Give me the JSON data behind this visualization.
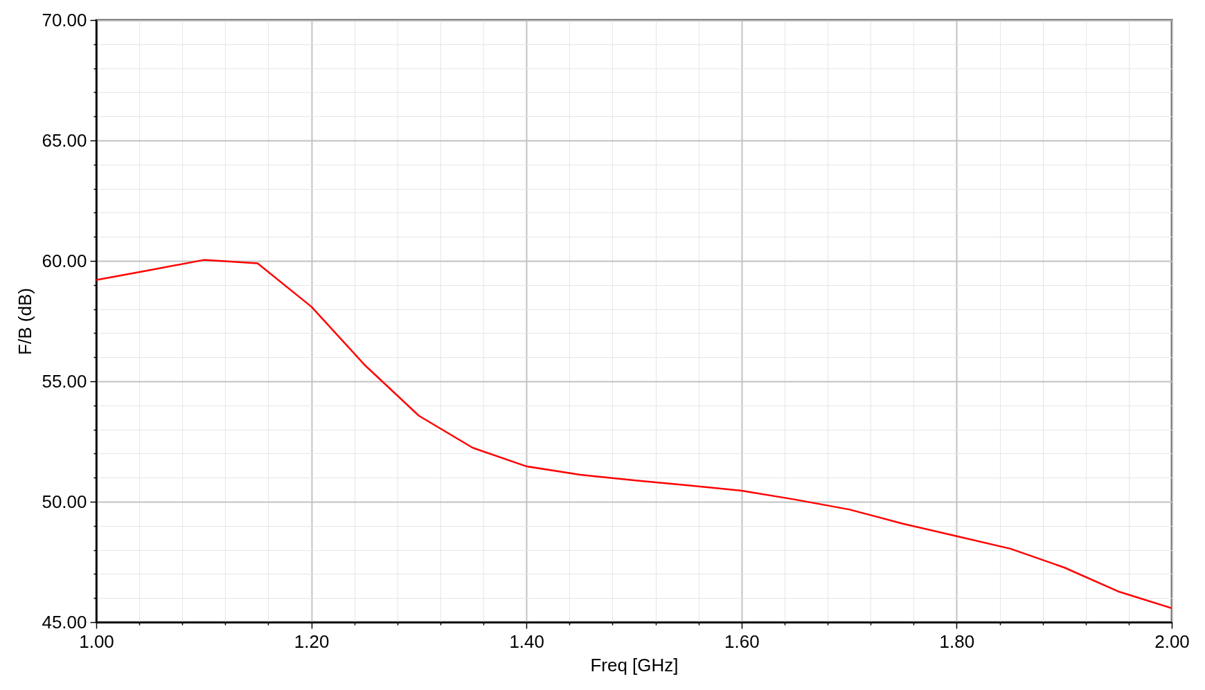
{
  "chart_data": {
    "type": "line",
    "xlabel": "Freq [GHz]",
    "ylabel": "F/B (dB)",
    "x": [
      1.0,
      1.05,
      1.1,
      1.15,
      1.2,
      1.25,
      1.3,
      1.35,
      1.4,
      1.45,
      1.5,
      1.55,
      1.6,
      1.65,
      1.7,
      1.75,
      1.8,
      1.85,
      1.9,
      1.95,
      2.0
    ],
    "series": [
      {
        "color": "#ff0000",
        "values": [
          59.21,
          59.62,
          60.04,
          59.9,
          58.1,
          55.66,
          53.57,
          52.24,
          51.47,
          51.12,
          50.89,
          50.68,
          50.46,
          50.09,
          49.68,
          49.09,
          48.57,
          48.05,
          47.27,
          46.28,
          45.58
        ]
      }
    ],
    "xlim": [
      1.0,
      2.0
    ],
    "xticks": [
      {
        "value": 1.0,
        "label": "1.00"
      },
      {
        "value": 1.04,
        "label": null
      },
      {
        "value": 1.08,
        "label": null
      },
      {
        "value": 1.12,
        "label": null
      },
      {
        "value": 1.16,
        "label": null
      },
      {
        "value": 1.2,
        "label": "1.20"
      },
      {
        "value": 1.24,
        "label": null
      },
      {
        "value": 1.28,
        "label": null
      },
      {
        "value": 1.32,
        "label": null
      },
      {
        "value": 1.36,
        "label": null
      },
      {
        "value": 1.4,
        "label": "1.40"
      },
      {
        "value": 1.44,
        "label": null
      },
      {
        "value": 1.48,
        "label": null
      },
      {
        "value": 1.52,
        "label": null
      },
      {
        "value": 1.56,
        "label": null
      },
      {
        "value": 1.6,
        "label": "1.60"
      },
      {
        "value": 1.64,
        "label": null
      },
      {
        "value": 1.68,
        "label": null
      },
      {
        "value": 1.72,
        "label": null
      },
      {
        "value": 1.76,
        "label": null
      },
      {
        "value": 1.8,
        "label": "1.80"
      },
      {
        "value": 1.84,
        "label": null
      },
      {
        "value": 1.88,
        "label": null
      },
      {
        "value": 1.92,
        "label": null
      },
      {
        "value": 1.96,
        "label": null
      },
      {
        "value": 2.0,
        "label": "2.00"
      }
    ],
    "ylim": [
      45,
      70
    ],
    "yticks": [
      {
        "value": 45,
        "label": "45.00"
      },
      {
        "value": 46,
        "label": null
      },
      {
        "value": 47,
        "label": null
      },
      {
        "value": 48,
        "label": null
      },
      {
        "value": 49,
        "label": null
      },
      {
        "value": 50,
        "label": "50.00"
      },
      {
        "value": 51,
        "label": null
      },
      {
        "value": 52,
        "label": null
      },
      {
        "value": 53,
        "label": null
      },
      {
        "value": 54,
        "label": null
      },
      {
        "value": 55,
        "label": "55.00"
      },
      {
        "value": 56,
        "label": null
      },
      {
        "value": 57,
        "label": null
      },
      {
        "value": 58,
        "label": null
      },
      {
        "value": 59,
        "label": null
      },
      {
        "value": 60,
        "label": "60.00"
      },
      {
        "value": 61,
        "label": null
      },
      {
        "value": 62,
        "label": null
      },
      {
        "value": 63,
        "label": null
      },
      {
        "value": 64,
        "label": null
      },
      {
        "value": 65,
        "label": "65.00"
      },
      {
        "value": 66,
        "label": null
      },
      {
        "value": 67,
        "label": null
      },
      {
        "value": 68,
        "label": null
      },
      {
        "value": 69,
        "label": null
      },
      {
        "value": 70,
        "label": "70.00"
      }
    ],
    "grid": true
  }
}
